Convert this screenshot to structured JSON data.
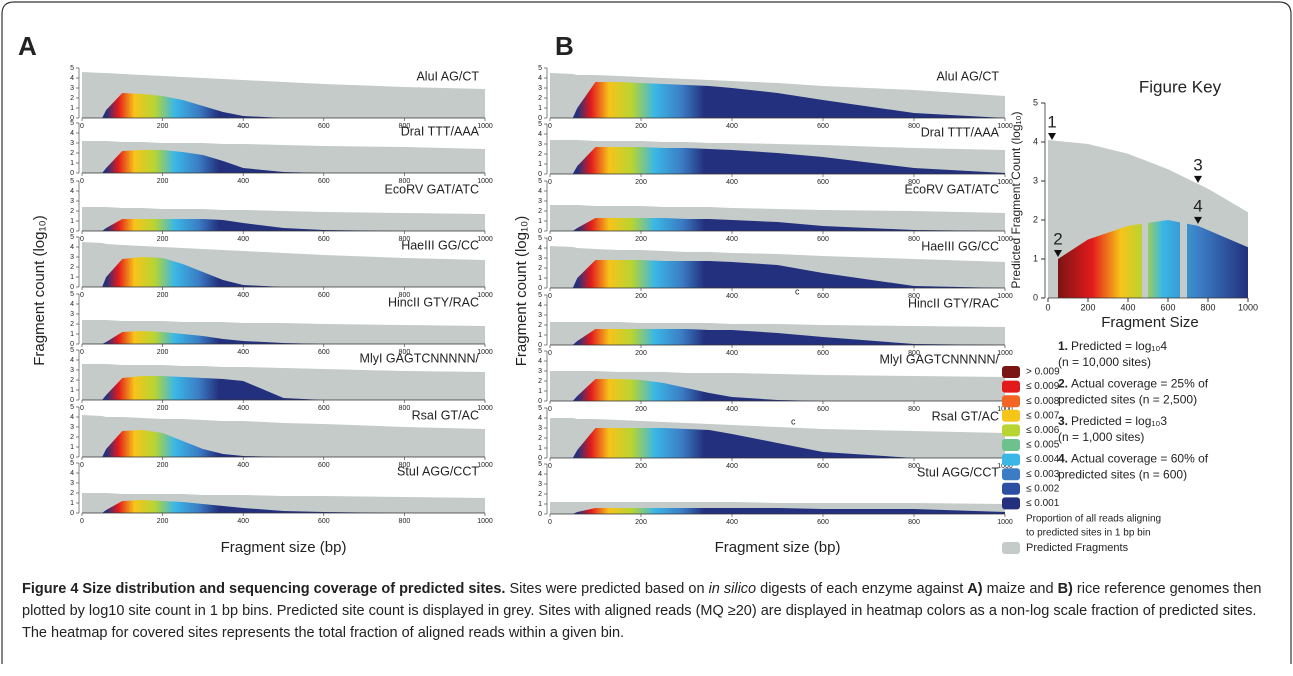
{
  "panels": {
    "A": {
      "letter": "A",
      "ylabel": "Fragment count (log₁₀)",
      "xlabel": "Fragment size (bp)",
      "xlim": [
        0,
        1000
      ],
      "ylim": [
        0,
        5
      ],
      "xticks": [
        0,
        200,
        400,
        600,
        800,
        1000
      ],
      "yticks": [
        0,
        1,
        2,
        3,
        4,
        5
      ],
      "x": [
        0,
        50,
        60,
        100,
        150,
        200,
        250,
        300,
        350,
        400,
        500,
        600,
        800,
        1000
      ],
      "enzymes": [
        {
          "label": "AluI AG/CT",
          "predicted": [
            4.6,
            4.5,
            4.5,
            4.4,
            4.3,
            4.2,
            4.1,
            4.0,
            3.9,
            3.8,
            3.6,
            3.4,
            3.1,
            2.9
          ],
          "covered": [
            0,
            0,
            0.8,
            2.5,
            2.4,
            2.2,
            1.8,
            1.2,
            0.6,
            0.2,
            0,
            0,
            0,
            0
          ]
        },
        {
          "label": "DraI TTT/AAA",
          "predicted": [
            3.2,
            3.2,
            3.2,
            3.1,
            3.1,
            3.0,
            3.0,
            3.0,
            2.9,
            2.9,
            2.8,
            2.7,
            2.6,
            2.4
          ],
          "covered": [
            0,
            0,
            0.5,
            2.2,
            2.3,
            2.3,
            2.1,
            1.8,
            1.2,
            0.5,
            0.1,
            0,
            0,
            0
          ]
        },
        {
          "label": "EcoRV GAT/ATC",
          "predicted": [
            2.4,
            2.4,
            2.4,
            2.3,
            2.3,
            2.2,
            2.2,
            2.2,
            2.1,
            2.1,
            2.0,
            1.9,
            1.8,
            1.7
          ],
          "covered": [
            0,
            0,
            0.3,
            1.2,
            1.2,
            1.2,
            1.2,
            1.2,
            1.1,
            0.8,
            0.3,
            0.1,
            0,
            0
          ]
        },
        {
          "label": "HaeIII GG/CC",
          "predicted": [
            4.5,
            4.4,
            4.3,
            4.2,
            4.1,
            4.0,
            3.9,
            3.8,
            3.7,
            3.6,
            3.4,
            3.2,
            2.9,
            2.7
          ],
          "covered": [
            0,
            0,
            1.0,
            2.8,
            3.0,
            2.9,
            2.3,
            1.5,
            0.7,
            0.2,
            0,
            0,
            0,
            0
          ]
        },
        {
          "label": "HincII GTY/RAC",
          "predicted": [
            2.4,
            2.4,
            2.4,
            2.3,
            2.3,
            2.3,
            2.2,
            2.2,
            2.2,
            2.1,
            2.1,
            2.0,
            1.9,
            1.8
          ],
          "covered": [
            0,
            0,
            0.2,
            1.2,
            1.3,
            1.2,
            1.0,
            0.8,
            0.5,
            0.3,
            0.1,
            0,
            0,
            0
          ]
        },
        {
          "label": "MlyI GAGTCNNNNN/",
          "predicted": [
            3.6,
            3.6,
            3.6,
            3.5,
            3.5,
            3.5,
            3.4,
            3.4,
            3.3,
            3.3,
            3.2,
            3.1,
            2.9,
            2.8
          ],
          "covered": [
            0,
            0,
            0.5,
            2.2,
            2.4,
            2.4,
            2.3,
            2.2,
            2.1,
            1.9,
            0.2,
            0,
            0,
            0
          ]
        },
        {
          "label": "RsaI GT/AC",
          "predicted": [
            4.2,
            4.1,
            4.0,
            4.0,
            3.9,
            3.8,
            3.8,
            3.7,
            3.6,
            3.6,
            3.4,
            3.3,
            3.0,
            2.8
          ],
          "covered": [
            0,
            0,
            0.8,
            2.6,
            2.7,
            2.4,
            1.6,
            0.8,
            0.3,
            0.1,
            0,
            0,
            0,
            0
          ]
        },
        {
          "label": "StuI AGG/CCT",
          "predicted": [
            2.0,
            2.0,
            2.0,
            1.9,
            1.9,
            1.9,
            1.9,
            1.8,
            1.8,
            1.8,
            1.7,
            1.7,
            1.6,
            1.5
          ],
          "covered": [
            0,
            0,
            0.3,
            1.2,
            1.3,
            1.2,
            1.1,
            0.9,
            0.7,
            0.5,
            0.2,
            0.1,
            0,
            0
          ]
        }
      ]
    },
    "B": {
      "letter": "B",
      "ylabel": "Fragment count (log₁₀)",
      "xlabel": "Fragment size (bp)",
      "xlim": [
        0,
        1000
      ],
      "ylim": [
        0,
        5
      ],
      "xticks": [
        0,
        200,
        400,
        600,
        800,
        1000
      ],
      "yticks": [
        0,
        1,
        2,
        3,
        4,
        5
      ],
      "x": [
        0,
        50,
        60,
        100,
        150,
        200,
        250,
        300,
        350,
        400,
        500,
        600,
        800,
        1000
      ],
      "annotations": [
        "c",
        "c"
      ],
      "enzymes": [
        {
          "label": "AluI AG/CT",
          "predicted": [
            4.5,
            4.4,
            4.3,
            4.3,
            4.2,
            4.1,
            4.0,
            3.9,
            3.8,
            3.7,
            3.5,
            3.2,
            2.8,
            2.2
          ],
          "covered": [
            0,
            0,
            1.0,
            3.6,
            3.6,
            3.5,
            3.4,
            3.3,
            3.2,
            3.0,
            2.5,
            1.8,
            0.5,
            0
          ]
        },
        {
          "label": "DraI TTT/AAA",
          "predicted": [
            3.4,
            3.4,
            3.4,
            3.3,
            3.3,
            3.3,
            3.2,
            3.2,
            3.1,
            3.1,
            3.0,
            2.9,
            2.6,
            2.4
          ],
          "covered": [
            0,
            0,
            0.8,
            2.7,
            2.7,
            2.7,
            2.6,
            2.6,
            2.5,
            2.4,
            2.1,
            1.7,
            0.6,
            0.1
          ]
        },
        {
          "label": "EcoRV GAT/ATC",
          "predicted": [
            2.6,
            2.6,
            2.6,
            2.5,
            2.5,
            2.5,
            2.4,
            2.4,
            2.4,
            2.3,
            2.2,
            2.1,
            2.0,
            1.8
          ],
          "covered": [
            0,
            0,
            0.3,
            1.3,
            1.3,
            1.3,
            1.3,
            1.2,
            1.2,
            1.1,
            0.9,
            0.5,
            0.1,
            0
          ]
        },
        {
          "label": "HaeIII GG/CC",
          "predicted": [
            4.2,
            4.1,
            4.0,
            3.9,
            3.8,
            3.8,
            3.7,
            3.6,
            3.6,
            3.5,
            3.4,
            3.2,
            2.9,
            2.6
          ],
          "covered": [
            0,
            0,
            1.0,
            2.8,
            2.8,
            2.8,
            2.7,
            2.7,
            2.7,
            2.6,
            2.3,
            1.5,
            0.2,
            0
          ]
        },
        {
          "label": "HincII GTY/RAC",
          "predicted": [
            2.3,
            2.3,
            2.3,
            2.3,
            2.3,
            2.2,
            2.2,
            2.2,
            2.2,
            2.1,
            2.1,
            2.0,
            1.9,
            1.8
          ],
          "covered": [
            0,
            0,
            0.4,
            1.6,
            1.6,
            1.6,
            1.6,
            1.6,
            1.5,
            1.5,
            1.2,
            0.8,
            0.1,
            0
          ]
        },
        {
          "label": "MlyI GAGTCNNNNN/",
          "predicted": [
            3.0,
            3.0,
            3.0,
            3.0,
            2.9,
            2.9,
            2.9,
            2.8,
            2.8,
            2.8,
            2.7,
            2.6,
            2.5,
            2.4
          ],
          "covered": [
            0,
            0,
            0.5,
            2.2,
            2.2,
            2.1,
            1.8,
            1.3,
            0.8,
            0.4,
            0.1,
            0,
            0,
            0
          ]
        },
        {
          "label": "RsaI GT/AC",
          "predicted": [
            4.0,
            4.0,
            3.9,
            3.9,
            3.8,
            3.7,
            3.6,
            3.5,
            3.4,
            3.3,
            3.1,
            2.9,
            2.7,
            2.5
          ],
          "covered": [
            0,
            0,
            0.8,
            3.0,
            3.0,
            3.0,
            3.0,
            2.9,
            2.8,
            2.4,
            1.5,
            0.6,
            0,
            0
          ]
        },
        {
          "label": "StuI AGG/CCT",
          "predicted": [
            1.2,
            1.2,
            1.2,
            1.2,
            1.2,
            1.2,
            1.2,
            1.2,
            1.2,
            1.2,
            1.1,
            1.1,
            1.1,
            1.0
          ],
          "covered": [
            0,
            0,
            0.2,
            0.6,
            0.6,
            0.6,
            0.6,
            0.6,
            0.6,
            0.6,
            0.6,
            0.5,
            0.5,
            0.2
          ]
        }
      ]
    }
  },
  "legend": {
    "items": [
      {
        "label": "> 0.009",
        "color": "#7b1414"
      },
      {
        "label": "≤ 0.009",
        "color": "#e31a1c"
      },
      {
        "label": "≤ 0.008",
        "color": "#f26522"
      },
      {
        "label": "≤ 0.007",
        "color": "#f7c41a"
      },
      {
        "label": "≤ 0.006",
        "color": "#b8d432"
      },
      {
        "label": "≤ 0.005",
        "color": "#6cc18e"
      },
      {
        "label": "≤ 0.004",
        "color": "#3ab7e6"
      },
      {
        "label": "≤ 0.003",
        "color": "#3b7cc4"
      },
      {
        "label": "≤ 0.002",
        "color": "#2c4fa3"
      },
      {
        "label": "≤ 0.001",
        "color": "#23307d"
      }
    ],
    "description": [
      "Proportion of all reads aligning",
      "to predicted sites in 1 bp bin"
    ],
    "predicted": {
      "label": "Predicted Fragments",
      "color": "#c4cbc9"
    }
  },
  "key": {
    "title": "Figure Key",
    "ylabel": "Predicted Fragment Count (log₁₀)",
    "xlabel": "Fragment Size",
    "xlim": [
      0,
      1000
    ],
    "ylim": [
      0,
      5
    ],
    "xticks": [
      0,
      200,
      400,
      600,
      800,
      1000
    ],
    "yticks": [
      0,
      1,
      2,
      3,
      4,
      5
    ],
    "predicted_x": [
      0,
      200,
      400,
      600,
      800,
      1000
    ],
    "predicted": [
      4.05,
      3.95,
      3.7,
      3.3,
      2.8,
      2.2
    ],
    "covered_x": [
      50,
      200,
      400,
      600,
      750,
      1000
    ],
    "covered": [
      1.0,
      1.5,
      1.85,
      2.0,
      1.85,
      1.3
    ],
    "markers": [
      {
        "label": "1",
        "x": 20,
        "y": 4.0
      },
      {
        "label": "2",
        "x": 50,
        "y": 1.0
      },
      {
        "label": "3",
        "x": 750,
        "y": 2.9
      },
      {
        "label": "4",
        "x": 750,
        "y": 1.85
      }
    ],
    "notes": [
      {
        "number": "1.",
        "lines": [
          "Predicted = log₁₀4",
          "(n = 10,000 sites)"
        ]
      },
      {
        "number": "2.",
        "lines": [
          "Actual coverage = 25% of",
          "predicted sites (n = 2,500)"
        ]
      },
      {
        "number": "3.",
        "lines": [
          "Predicted = log₁₀3",
          "(n = 1,000 sites)"
        ]
      },
      {
        "number": "4.",
        "lines": [
          "Actual coverage = 60% of",
          "predicted sites (n = 600)"
        ]
      }
    ]
  },
  "caption": {
    "title": "Figure 4 Size distribution and sequencing coverage of predicted sites.",
    "parts": [
      " Sites were predicted based on ",
      "in silico",
      " digests of each enzyme against ",
      "A)",
      " maize and ",
      "B)",
      " rice reference genomes then plotted by log10 site count in 1 bp bins. Predicted site count is displayed in grey. Sites with aligned reads (MQ ≥20) are displayed in heatmap colors as a non-log scale fraction of predicted sites. The heatmap for covered sites represents the total fraction of aligned reads within a given bin."
    ]
  }
}
